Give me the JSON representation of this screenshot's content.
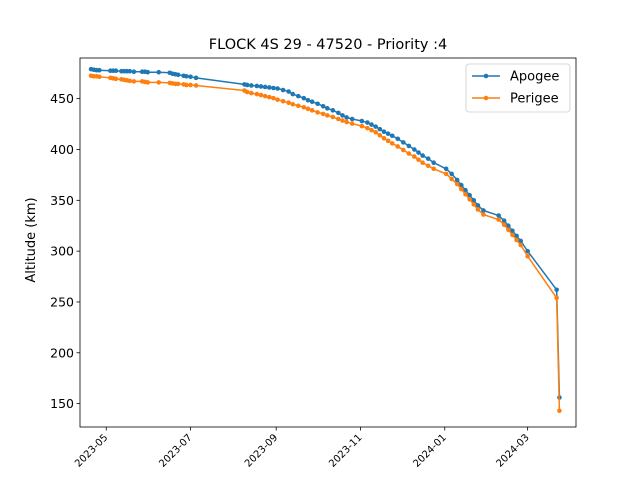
{
  "chart_data": {
    "type": "line",
    "title": "FLOCK 4S 29 - 47520 - Priority :4",
    "xlabel": "",
    "ylabel": "Altitude (km)",
    "x_ticks": [
      "2023-05-01",
      "2023-07-01",
      "2023-09-01",
      "2023-11-01",
      "2024-01-01",
      "2024-03-01"
    ],
    "x_tick_labels": [
      "2023-05",
      "2023-07",
      "2023-09",
      "2023-11",
      "2024-01",
      "2024-03"
    ],
    "xlim": [
      "2023-04-12",
      "2024-04-05"
    ],
    "y_ticks": [
      150,
      200,
      250,
      300,
      350,
      400,
      450
    ],
    "ylim": [
      127,
      490
    ],
    "grid": false,
    "legend_position": "top-right",
    "series": [
      {
        "name": "Apogee",
        "color": "#1f77b4",
        "x": [
          "2023-04-20",
          "2023-04-22",
          "2023-04-24",
          "2023-04-26",
          "2023-05-04",
          "2023-05-06",
          "2023-05-08",
          "2023-05-12",
          "2023-05-14",
          "2023-05-16",
          "2023-05-18",
          "2023-05-21",
          "2023-05-27",
          "2023-05-29",
          "2023-05-31",
          "2023-06-08",
          "2023-06-16",
          "2023-06-18",
          "2023-06-20",
          "2023-06-22",
          "2023-06-26",
          "2023-06-28",
          "2023-07-01",
          "2023-07-05",
          "2023-08-09",
          "2023-08-11",
          "2023-08-14",
          "2023-08-18",
          "2023-08-21",
          "2023-08-24",
          "2023-08-27",
          "2023-08-30",
          "2023-09-02",
          "2023-09-06",
          "2023-09-10",
          "2023-09-13",
          "2023-09-17",
          "2023-09-21",
          "2023-09-24",
          "2023-09-27",
          "2023-10-01",
          "2023-10-05",
          "2023-10-08",
          "2023-10-12",
          "2023-10-16",
          "2023-10-19",
          "2023-10-22",
          "2023-10-26",
          "2023-11-02",
          "2023-11-06",
          "2023-11-09",
          "2023-11-12",
          "2023-11-15",
          "2023-11-18",
          "2023-11-21",
          "2023-11-24",
          "2023-11-28",
          "2023-12-02",
          "2023-12-06",
          "2023-12-10",
          "2023-12-13",
          "2023-12-16",
          "2023-12-20",
          "2023-12-24",
          "2024-01-02",
          "2024-01-06",
          "2024-01-10",
          "2024-01-13",
          "2024-01-16",
          "2024-01-19",
          "2024-01-22",
          "2024-01-25",
          "2024-01-29",
          "2024-02-09",
          "2024-02-13",
          "2024-02-16",
          "2024-02-19",
          "2024-02-22",
          "2024-02-25",
          "2024-03-01",
          "2024-03-22",
          "2024-03-24"
        ],
        "values": [
          479,
          478.5,
          478,
          478,
          477.5,
          477.5,
          477.5,
          477,
          477,
          477,
          477,
          476.5,
          476.5,
          476.5,
          476,
          476,
          475.5,
          474.5,
          474,
          473.5,
          472.5,
          472,
          471.5,
          470.5,
          464,
          463.5,
          463,
          462.5,
          462,
          461.5,
          461,
          460.5,
          460,
          458.5,
          457,
          454.5,
          452.5,
          450.5,
          448.5,
          447,
          445,
          442.5,
          440.5,
          438.5,
          436,
          433.5,
          431.5,
          430,
          428,
          426.5,
          424.5,
          422.5,
          420,
          417.5,
          415.5,
          413.5,
          410.5,
          407,
          403.5,
          400,
          397,
          394,
          391,
          387,
          381,
          376,
          370,
          365,
          360,
          355,
          350,
          345,
          340,
          335,
          330,
          325,
          320,
          315,
          310,
          300,
          262,
          156
        ]
      },
      {
        "name": "Perigee",
        "color": "#ff7f0e",
        "x": [
          "2023-04-20",
          "2023-04-22",
          "2023-04-24",
          "2023-04-26",
          "2023-05-04",
          "2023-05-06",
          "2023-05-08",
          "2023-05-12",
          "2023-05-14",
          "2023-05-16",
          "2023-05-18",
          "2023-05-21",
          "2023-05-27",
          "2023-05-29",
          "2023-05-31",
          "2023-06-08",
          "2023-06-16",
          "2023-06-18",
          "2023-06-20",
          "2023-06-22",
          "2023-06-26",
          "2023-06-28",
          "2023-07-01",
          "2023-07-05",
          "2023-08-09",
          "2023-08-11",
          "2023-08-14",
          "2023-08-18",
          "2023-08-21",
          "2023-08-24",
          "2023-08-27",
          "2023-08-30",
          "2023-09-02",
          "2023-09-06",
          "2023-09-10",
          "2023-09-13",
          "2023-09-17",
          "2023-09-21",
          "2023-09-24",
          "2023-09-27",
          "2023-10-01",
          "2023-10-05",
          "2023-10-08",
          "2023-10-12",
          "2023-10-16",
          "2023-10-19",
          "2023-10-22",
          "2023-10-26",
          "2023-11-02",
          "2023-11-06",
          "2023-11-09",
          "2023-11-12",
          "2023-11-15",
          "2023-11-18",
          "2023-11-21",
          "2023-11-24",
          "2023-11-28",
          "2023-12-02",
          "2023-12-06",
          "2023-12-10",
          "2023-12-13",
          "2023-12-16",
          "2023-12-20",
          "2023-12-24",
          "2024-01-02",
          "2024-01-06",
          "2024-01-10",
          "2024-01-13",
          "2024-01-16",
          "2024-01-19",
          "2024-01-22",
          "2024-01-25",
          "2024-01-29",
          "2024-02-09",
          "2024-02-13",
          "2024-02-16",
          "2024-02-19",
          "2024-02-22",
          "2024-02-25",
          "2024-03-01",
          "2024-03-22",
          "2024-03-24"
        ],
        "values": [
          472.5,
          472,
          472,
          471.5,
          470.5,
          470,
          469.5,
          469,
          468.5,
          468,
          467.5,
          467,
          467,
          466.5,
          466,
          466,
          465.5,
          465,
          464.5,
          464.5,
          464,
          463.5,
          463.5,
          463,
          458,
          456.5,
          455.5,
          454.5,
          453.5,
          452.5,
          451.5,
          450.5,
          449,
          447.5,
          446,
          444.5,
          443,
          441.5,
          440,
          438.5,
          436.5,
          435,
          433.5,
          432,
          430,
          428.5,
          427,
          425.5,
          423,
          421,
          419,
          417,
          414,
          411,
          408.5,
          406,
          403,
          399.5,
          396,
          393,
          390,
          387,
          384,
          381,
          376,
          371,
          366,
          361,
          356,
          351,
          346,
          341,
          336,
          331,
          326,
          321,
          316,
          311,
          306,
          295,
          254,
          143
        ]
      }
    ]
  }
}
